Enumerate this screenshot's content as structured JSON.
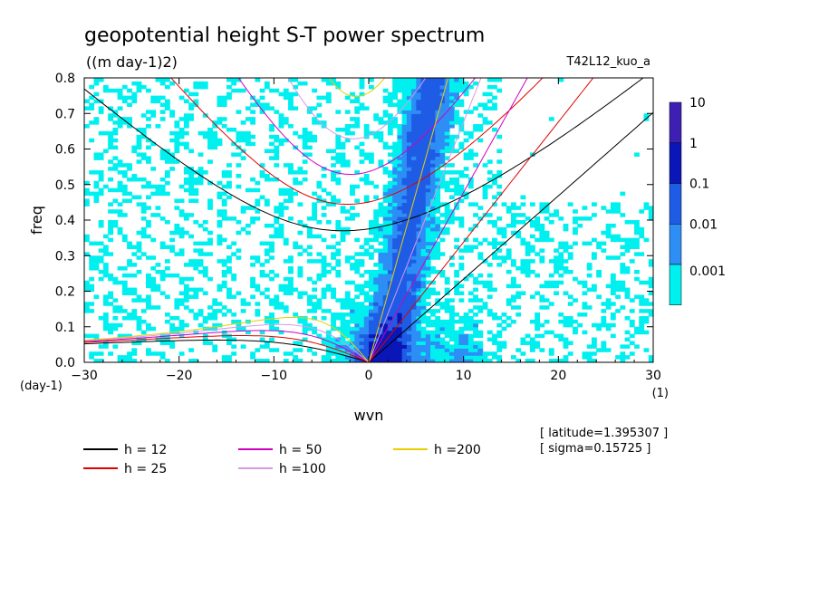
{
  "header": {
    "title": "geopotential height S-T power spectrum",
    "units": "((m day-1)2)",
    "run_id": "T42L12_kuo_a"
  },
  "info": {
    "latitude": "[ latitude=1.395307 ]",
    "sigma": "[ sigma=0.15725 ]"
  },
  "chart_data": {
    "type": "heatmap",
    "title": "geopotential height S-T power spectrum",
    "xlabel": "wvn",
    "ylabel": "freq",
    "x_unit_label": "(1)",
    "y_unit_label": "(day-1)",
    "xlim": [
      -30,
      30
    ],
    "ylim": [
      0,
      0.8
    ],
    "x_ticks": [
      -30,
      -20,
      -10,
      0,
      10,
      20,
      30
    ],
    "y_ticks": [
      0,
      0.1,
      0.2,
      0.3,
      0.4,
      0.5,
      0.6,
      0.7,
      0.8
    ],
    "colorbar": {
      "levels": [
        "10",
        "1",
        "0.1",
        "0.01",
        "0.001"
      ],
      "colors": [
        "#3d1fb3",
        "#0a16b8",
        "#1e5ce6",
        "#2d8ef5",
        "#00f0f0"
      ]
    },
    "dispersion_curves": [
      {
        "label": "h = 12",
        "h": 12,
        "color": "#000000"
      },
      {
        "label": "h = 25",
        "h": 25,
        "color": "#e00000"
      },
      {
        "label": "h = 50",
        "h": 50,
        "color": "#d000c0"
      },
      {
        "label": "h =100",
        "h": 100,
        "color": "#d898e8"
      },
      {
        "label": "h =200",
        "h": 200,
        "color": "#e8d000"
      }
    ]
  }
}
